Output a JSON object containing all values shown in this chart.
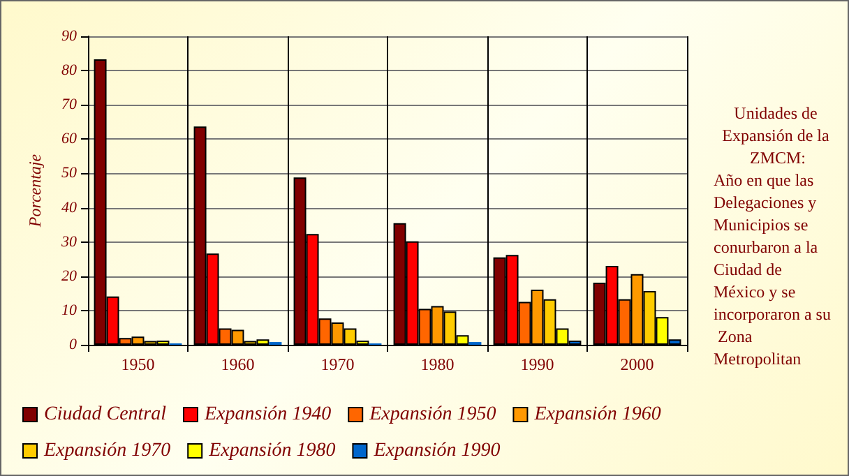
{
  "chart_data": {
    "type": "bar",
    "ylabel": "Porcentaje",
    "categories": [
      "1950",
      "1960",
      "1970",
      "1980",
      "1990",
      "2000"
    ],
    "series": [
      {
        "name": "Ciudad Central",
        "color": "#800000",
        "values": [
          83.3,
          63.7,
          48.8,
          35.5,
          25.5,
          18.1
        ]
      },
      {
        "name": "Expansión 1940",
        "color": "#ff0000",
        "values": [
          14.1,
          26.6,
          32.3,
          30.2,
          26.2,
          23.0
        ]
      },
      {
        "name": "Expansión 1950",
        "color": "#ff6600",
        "values": [
          2.0,
          4.8,
          7.7,
          10.5,
          12.5,
          13.3
        ]
      },
      {
        "name": "Expansión 1960",
        "color": "#ff9900",
        "values": [
          2.4,
          4.4,
          6.5,
          11.3,
          16.1,
          20.6
        ]
      },
      {
        "name": "Expansión 1970",
        "color": "#ffcc00",
        "values": [
          1.1,
          1.1,
          4.8,
          9.7,
          13.3,
          15.7
        ]
      },
      {
        "name": "Expansión 1980",
        "color": "#ffff00",
        "values": [
          1.2,
          1.6,
          1.2,
          2.8,
          4.8,
          8.1
        ]
      },
      {
        "name": "Expansión 1990",
        "color": "#0066cc",
        "values": [
          0.4,
          0.8,
          0.4,
          0.8,
          1.2,
          1.6
        ]
      }
    ],
    "ylim": [
      0,
      90
    ],
    "yticks": [
      0,
      10,
      20,
      30,
      40,
      50,
      60,
      70,
      80,
      90
    ],
    "grid": true,
    "legend": "bottom",
    "annotations": [
      "Unidades de Expansión de la ZMCM:",
      "Año en que las Delegaciones y Municipios se conurbaron a la Ciudad de México y se incorporaron a su Zona Metropolitan"
    ]
  }
}
